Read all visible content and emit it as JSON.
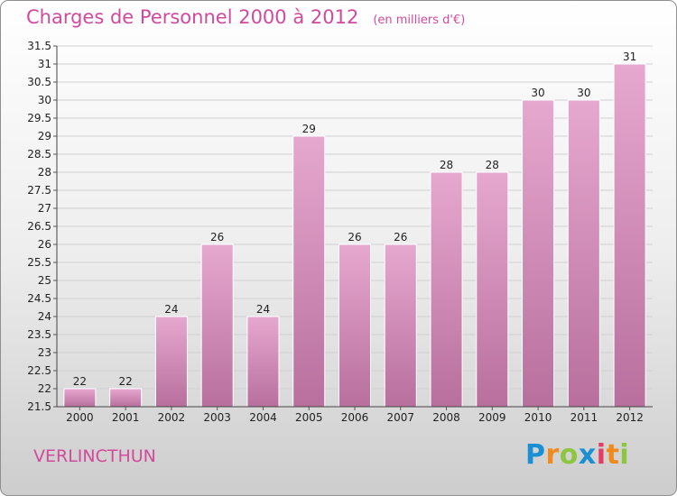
{
  "title": "Charges de Personnel 2000 à 2012",
  "subtitle": "(en milliers d'€)",
  "commune": "VERLINCTHUN",
  "logo": {
    "letters": [
      "P",
      "r",
      "o",
      "x",
      "i",
      "t",
      "i"
    ],
    "colors": [
      "#1a8fd4",
      "#f08a1c",
      "#8cc63e",
      "#1a8fd4",
      "#e63c64",
      "#f08a1c",
      "#8cc63e"
    ]
  },
  "colors": {
    "accent": "#d24a9c",
    "bar_top": "#e6a8cf",
    "bar_bottom": "#b86f9d"
  },
  "chart_data": {
    "type": "bar",
    "title": "Charges de Personnel 2000 à 2012",
    "subtitle": "(en milliers d'€)",
    "xlabel": "",
    "ylabel": "",
    "categories": [
      "2000",
      "2001",
      "2002",
      "2003",
      "2004",
      "2005",
      "2006",
      "2007",
      "2008",
      "2009",
      "2010",
      "2011",
      "2012"
    ],
    "values": [
      22,
      22,
      24,
      26,
      24,
      29,
      26,
      26,
      28,
      28,
      30,
      30,
      31
    ],
    "value_labels": [
      "22",
      "22",
      "24",
      "26",
      "24",
      "29",
      "26",
      "26",
      "28",
      "28",
      "30",
      "30",
      "31"
    ],
    "ylim": [
      21.5,
      31.5
    ],
    "yticks": [
      21.5,
      22,
      22.5,
      23,
      23.5,
      24,
      24.5,
      25,
      25.5,
      26,
      26.5,
      27,
      27.5,
      28,
      28.5,
      29,
      29.5,
      30,
      30.5,
      31,
      31.5
    ],
    "ytick_labels": [
      "21.5",
      "22",
      "22.5",
      "23",
      "23.5",
      "24",
      "24.5",
      "25",
      "25.5",
      "26",
      "26.5",
      "27",
      "27.5",
      "28",
      "28.5",
      "29",
      "29.5",
      "30",
      "30.5",
      "31",
      "31.5"
    ],
    "grid": true,
    "legend": "none"
  }
}
